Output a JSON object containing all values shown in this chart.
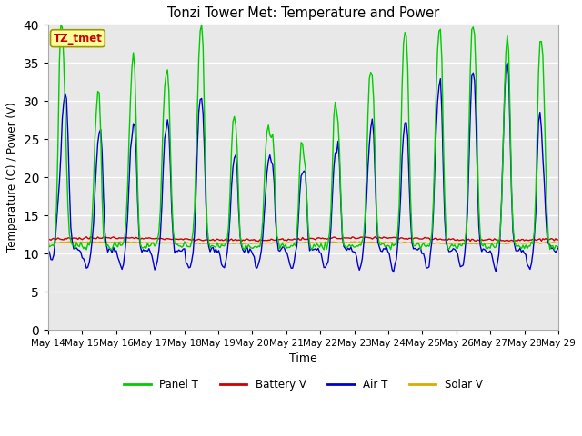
{
  "title": "Tonzi Tower Met: Temperature and Power",
  "xlabel": "Time",
  "ylabel": "Temperature (C) / Power (V)",
  "ylim": [
    0,
    40
  ],
  "yticks": [
    0,
    5,
    10,
    15,
    20,
    25,
    30,
    35,
    40
  ],
  "annotation_text": "TZ_tmet",
  "annotation_color": "#cc0000",
  "annotation_bg": "#ffff99",
  "annotation_edge": "#999900",
  "background_color": "#e8e8e8",
  "x_labels": [
    "May 14",
    "May 15",
    "May 16",
    "May 17",
    "May 18",
    "May 19",
    "May 20",
    "May 21",
    "May 22",
    "May 23",
    "May 24",
    "May 25",
    "May 26",
    "May 27",
    "May 28",
    "May 29"
  ],
  "panel_t_color": "#00cc00",
  "battery_v_color": "#cc0000",
  "air_t_color": "#0000cc",
  "solar_v_color": "#ddaa00",
  "legend_labels": [
    "Panel T",
    "Battery V",
    "Air T",
    "Solar V"
  ],
  "n_days": 15,
  "pts_per_day": 24
}
